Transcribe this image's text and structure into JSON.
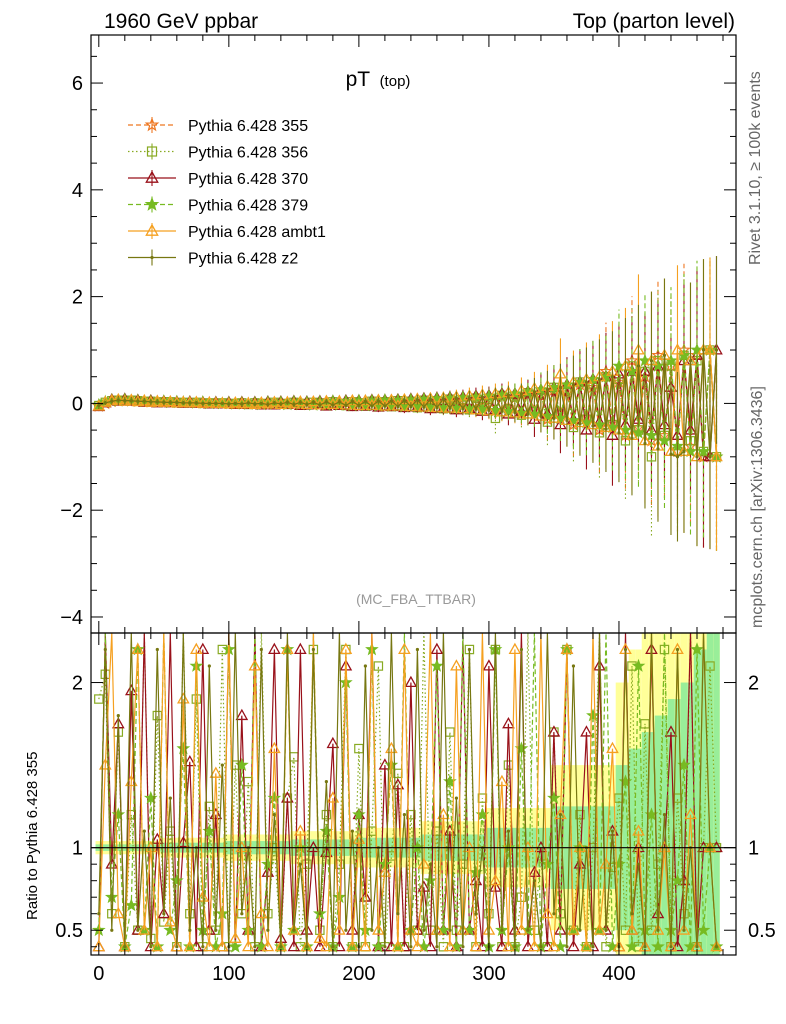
{
  "header": {
    "left": "1960 GeV ppbar",
    "right": "Top (parton level)"
  },
  "side": {
    "rivet": "Rivet 3.1.10, ≥ 100k events",
    "mcplots": "mcplots.cern.ch [arXiv:1306.3436]"
  },
  "chart_data": {
    "type": "line",
    "title_main": "pT",
    "title_sub": "(top)",
    "analysis_label": "(MC_FBA_TTBAR)",
    "x_ticks": [
      "0",
      "100",
      "200",
      "300",
      "400"
    ],
    "x_tick_values": [
      0,
      100,
      200,
      300,
      400
    ],
    "xlim": [
      -6,
      490
    ],
    "upper": {
      "ylim": [
        -4.3,
        6.9
      ],
      "y_ticks": [
        "−4",
        "−2",
        "0",
        "2",
        "4",
        "6"
      ],
      "y_tick_values": [
        -4,
        -2,
        0,
        2,
        4,
        6
      ],
      "grid": false
    },
    "ratio": {
      "ylabel": "Ratio to Pythia 6.428 355",
      "ylim": [
        0.35,
        2.3
      ],
      "y_ticks": [
        "0.5",
        "1",
        "2"
      ],
      "y_tick_values": [
        0.5,
        1,
        2
      ],
      "reference": 1
    },
    "legend_position": "top-left",
    "series": [
      {
        "name": "Pythia 6.428 355",
        "color": "#ee7722",
        "dash": "5,3",
        "marker": "star-open"
      },
      {
        "name": "Pythia 6.428 356",
        "color": "#88aa22",
        "dash": "1.5,2.5",
        "marker": "square-open"
      },
      {
        "name": "Pythia 6.428 370",
        "color": "#99111a",
        "dash": "",
        "marker": "triangle-open"
      },
      {
        "name": "Pythia 6.428 379",
        "color": "#77bb22",
        "dash": "5,3",
        "marker": "star-filled"
      },
      {
        "name": "Pythia 6.428 ambt1",
        "color": "#f5a020",
        "dash": "",
        "marker": "triangle-open"
      },
      {
        "name": "Pythia 6.428 z2",
        "color": "#777711",
        "dash": "",
        "marker": "dot"
      }
    ],
    "x": [
      0,
      5,
      10,
      15,
      20,
      25,
      30,
      35,
      40,
      45,
      50,
      55,
      60,
      65,
      70,
      75,
      80,
      85,
      90,
      95,
      100,
      105,
      110,
      115,
      120,
      125,
      130,
      135,
      140,
      145,
      150,
      155,
      160,
      165,
      170,
      175,
      180,
      185,
      190,
      195,
      200,
      205,
      210,
      215,
      220,
      225,
      230,
      235,
      240,
      245,
      250,
      255,
      260,
      265,
      270,
      275,
      280,
      285,
      290,
      295,
      300,
      305,
      310,
      315,
      320,
      325,
      330,
      335,
      340,
      345,
      350,
      355,
      360,
      365,
      370,
      375,
      380,
      385,
      390,
      395,
      400,
      405,
      410,
      415,
      420,
      425,
      430,
      435,
      440,
      445,
      450,
      455,
      460,
      465,
      470,
      475
    ],
    "values": [
      [
        -0.05,
        0.0,
        0.04,
        0.05,
        0.06,
        0.05,
        0.04,
        0.04,
        0.03,
        0.03,
        0.03,
        0.02,
        0.02,
        0.02,
        0.02,
        0.01,
        0.01,
        0.01,
        0.01,
        0.0,
        0.0,
        0.0,
        0.0,
        -0.01,
        0.0,
        -0.01,
        0.0,
        0.01,
        -0.01,
        0.0,
        0.01,
        -0.02,
        0.01,
        0.0,
        -0.02,
        0.02,
        -0.02,
        0.02,
        0.01,
        -0.02,
        0.02,
        -0.03,
        0.03,
        -0.01,
        0.02,
        -0.04,
        0.04,
        -0.02,
        0.03,
        -0.06,
        0.05,
        -0.03,
        0.04,
        -0.08,
        0.07,
        -0.04,
        0.05,
        -0.1,
        0.08,
        -0.05,
        0.06,
        -0.14,
        0.12,
        -0.08,
        0.1,
        -0.2,
        0.18,
        -0.12,
        0.14,
        -0.3,
        0.25,
        -0.18,
        0.2,
        -0.4,
        0.35,
        -0.25,
        0.3,
        -0.5,
        0.6,
        -0.35,
        0.4,
        -0.6,
        0.8,
        -0.45,
        0.5,
        -0.7,
        0.9,
        -0.6,
        0.7,
        -0.9,
        1.0,
        -0.8,
        0.9,
        -1.0,
        1.0,
        -1.0
      ],
      [
        -0.04,
        0.02,
        0.05,
        0.06,
        0.05,
        0.06,
        0.05,
        0.03,
        0.04,
        0.02,
        0.03,
        0.03,
        0.01,
        0.02,
        0.01,
        0.02,
        0.0,
        0.01,
        0.0,
        0.01,
        -0.01,
        0.0,
        0.01,
        -0.02,
        0.01,
        0.0,
        -0.01,
        0.02,
        0.0,
        -0.02,
        0.02,
        0.0,
        -0.03,
        0.02,
        0.01,
        -0.03,
        0.03,
        0.0,
        -0.04,
        0.03,
        0.01,
        -0.05,
        0.04,
        -0.02,
        0.03,
        -0.06,
        0.05,
        -0.03,
        0.04,
        -0.08,
        0.06,
        -0.04,
        0.05,
        -0.1,
        0.08,
        -0.05,
        0.07,
        -0.12,
        0.1,
        -0.06,
        0.08,
        -0.28,
        0.15,
        -0.1,
        0.12,
        -0.22,
        0.2,
        -0.15,
        0.18,
        -0.35,
        0.3,
        -0.2,
        0.25,
        -0.45,
        0.4,
        -0.3,
        0.35,
        -0.55,
        0.5,
        -0.4,
        0.45,
        -0.7,
        0.7,
        -0.5,
        0.6,
        -1.0,
        0.8,
        -0.6,
        0.7,
        -0.9,
        0.9,
        -0.7,
        0.8,
        -0.9,
        1.0,
        -1.0
      ],
      [
        -0.06,
        0.01,
        0.07,
        0.04,
        0.08,
        0.04,
        0.06,
        0.02,
        0.05,
        0.01,
        0.04,
        0.01,
        0.03,
        0.0,
        0.03,
        0.0,
        0.02,
        -0.01,
        0.02,
        -0.01,
        0.02,
        -0.02,
        0.02,
        -0.02,
        0.02,
        -0.03,
        0.03,
        -0.03,
        0.03,
        -0.02,
        0.04,
        -0.04,
        0.03,
        -0.03,
        0.04,
        -0.05,
        0.04,
        -0.04,
        0.05,
        -0.06,
        0.05,
        -0.05,
        0.06,
        -0.07,
        0.06,
        -0.06,
        0.07,
        -0.08,
        0.08,
        -0.07,
        0.09,
        -0.1,
        0.1,
        -0.09,
        0.11,
        -0.12,
        0.12,
        -0.1,
        0.14,
        -0.15,
        0.15,
        -0.12,
        0.18,
        -0.2,
        0.18,
        -0.15,
        0.22,
        -0.3,
        0.25,
        -0.2,
        0.3,
        -0.4,
        0.35,
        -0.3,
        0.4,
        -0.5,
        0.45,
        -0.35,
        0.5,
        -0.6,
        0.55,
        -0.4,
        0.6,
        -0.3,
        0.6,
        -0.5,
        0.7,
        -0.4,
        0.3,
        -0.6,
        0.8,
        -0.5,
        0.9,
        -1.0,
        -1.0,
        1.0
      ],
      [
        -0.03,
        0.03,
        0.06,
        0.05,
        0.07,
        0.05,
        0.05,
        0.04,
        0.04,
        0.03,
        0.04,
        0.02,
        0.03,
        0.02,
        0.02,
        0.01,
        0.02,
        0.0,
        0.01,
        0.0,
        0.01,
        -0.01,
        0.01,
        -0.01,
        0.01,
        -0.02,
        0.02,
        -0.01,
        0.02,
        -0.02,
        0.03,
        -0.02,
        0.02,
        -0.03,
        0.03,
        -0.03,
        0.04,
        -0.03,
        0.04,
        -0.04,
        0.05,
        -0.04,
        0.05,
        -0.05,
        0.06,
        -0.05,
        0.06,
        -0.06,
        0.07,
        -0.06,
        0.08,
        -0.07,
        0.09,
        -0.08,
        0.1,
        -0.09,
        0.11,
        -0.1,
        0.12,
        -0.11,
        0.14,
        -0.13,
        0.16,
        -0.15,
        0.18,
        -0.18,
        0.22,
        -0.2,
        0.26,
        -0.24,
        0.3,
        -0.28,
        0.35,
        -0.32,
        0.4,
        -0.36,
        0.45,
        -0.4,
        0.5,
        -0.45,
        0.7,
        -0.5,
        0.6,
        -0.55,
        0.8,
        -0.6,
        0.7,
        -0.7,
        0.8,
        -0.8,
        0.9,
        -0.9,
        1.0,
        -0.9,
        1.0,
        -1.0
      ],
      [
        -0.05,
        0.02,
        0.05,
        0.07,
        0.04,
        0.06,
        0.03,
        0.05,
        0.02,
        0.04,
        0.02,
        0.03,
        0.01,
        0.02,
        0.01,
        0.02,
        0.0,
        0.01,
        0.0,
        0.0,
        -0.01,
        0.01,
        -0.01,
        0.0,
        -0.02,
        0.01,
        -0.01,
        0.02,
        -0.02,
        0.02,
        -0.01,
        0.03,
        -0.02,
        0.03,
        -0.03,
        0.04,
        -0.02,
        0.04,
        -0.03,
        0.05,
        -0.04,
        0.05,
        -0.04,
        0.06,
        -0.05,
        0.06,
        -0.05,
        0.07,
        -0.06,
        0.08,
        -0.07,
        0.09,
        -0.08,
        0.1,
        -0.09,
        0.12,
        -0.1,
        0.14,
        -0.12,
        0.16,
        -0.14,
        0.18,
        -0.16,
        0.2,
        -0.18,
        0.24,
        -0.2,
        0.28,
        -0.24,
        0.32,
        -0.28,
        0.55,
        -0.32,
        0.4,
        -0.36,
        0.45,
        -0.4,
        0.5,
        -0.45,
        0.6,
        -0.5,
        0.7,
        -0.6,
        1.0,
        -0.7,
        0.8,
        -0.8,
        0.9,
        -0.9,
        1.0,
        -0.9,
        0.8,
        -1.0,
        1.0,
        1.0,
        -1.0
      ],
      [
        -0.04,
        0.01,
        0.04,
        0.06,
        0.05,
        0.05,
        0.04,
        0.04,
        0.03,
        0.03,
        0.02,
        0.02,
        0.02,
        0.01,
        0.01,
        0.01,
        0.0,
        0.0,
        0.0,
        0.0,
        -0.01,
        0.0,
        -0.01,
        0.01,
        -0.01,
        0.0,
        -0.02,
        0.01,
        -0.01,
        0.02,
        -0.02,
        0.02,
        -0.02,
        0.02,
        -0.03,
        0.03,
        -0.03,
        0.03,
        -0.04,
        0.04,
        -0.04,
        0.04,
        -0.05,
        0.05,
        -0.05,
        0.05,
        -0.06,
        0.06,
        -0.06,
        0.07,
        -0.07,
        0.08,
        -0.08,
        0.09,
        -0.09,
        0.1,
        -0.1,
        0.11,
        -0.11,
        0.12,
        -0.13,
        0.14,
        -0.15,
        0.16,
        -0.17,
        0.18,
        -0.2,
        0.22,
        -0.24,
        0.26,
        -0.28,
        0.3,
        -0.32,
        0.35,
        -0.38,
        0.4,
        -0.42,
        0.45,
        -0.48,
        0.5,
        -0.55,
        0.6,
        -0.65,
        0.7,
        -0.75,
        0.8,
        -0.85,
        0.9,
        -0.95,
        -1.0,
        -0.9,
        0.8,
        -1.0,
        1.0,
        -1.0,
        1.0
      ]
    ],
    "band_error": [
      0.02,
      0.02,
      0.02,
      0.02,
      0.02,
      0.02,
      0.02,
      0.02,
      0.02,
      0.02,
      0.03,
      0.03,
      0.03,
      0.03,
      0.03,
      0.03,
      0.03,
      0.03,
      0.03,
      0.03,
      0.04,
      0.04,
      0.04,
      0.04,
      0.04,
      0.04,
      0.04,
      0.04,
      0.04,
      0.04,
      0.05,
      0.05,
      0.05,
      0.05,
      0.05,
      0.05,
      0.05,
      0.05,
      0.05,
      0.05,
      0.06,
      0.06,
      0.06,
      0.06,
      0.06,
      0.06,
      0.06,
      0.06,
      0.06,
      0.06,
      0.08,
      0.08,
      0.08,
      0.08,
      0.08,
      0.08,
      0.08,
      0.08,
      0.08,
      0.08,
      0.12,
      0.12,
      0.12,
      0.12,
      0.12,
      0.12,
      0.12,
      0.12,
      0.12,
      0.12,
      0.25,
      0.25,
      0.25,
      0.25,
      0.25,
      0.25,
      0.25,
      0.25,
      0.25,
      0.25,
      0.5,
      0.5,
      0.6,
      0.6,
      0.7,
      0.7,
      0.8,
      0.8,
      0.9,
      0.9,
      1.0,
      1.0,
      1.2,
      1.2,
      1.4,
      1.4
    ],
    "ratio_values": [
      [
        1,
        1,
        1,
        1,
        1,
        1,
        1,
        1,
        1,
        1,
        1,
        1,
        1,
        1,
        1,
        1,
        1,
        1,
        1,
        1,
        1,
        1,
        1,
        1,
        1,
        1,
        1,
        1,
        1,
        1,
        1,
        1,
        1,
        1,
        1,
        1,
        1,
        1,
        1,
        1,
        1,
        1,
        1,
        1,
        1,
        1,
        1,
        1,
        1,
        1,
        1,
        1,
        1,
        1,
        1,
        1,
        1,
        1,
        1,
        1,
        1,
        1,
        1,
        1,
        1,
        1,
        1,
        1,
        1,
        1,
        1,
        1,
        1,
        1,
        1,
        1,
        1,
        1,
        1,
        1,
        1,
        1,
        1,
        1,
        1,
        1,
        1,
        1,
        1,
        1,
        1,
        1,
        1,
        1,
        1,
        1
      ],
      [
        1.9,
        2.05,
        0.6,
        1.7,
        0.4,
        1.2,
        0.5,
        2.3,
        0.45,
        1.8,
        0.55,
        1.1,
        0.4,
        2.3,
        0.6,
        1.9,
        0.4,
        1.25,
        0.5,
        2.2,
        0.4,
        1.5,
        0.6,
        1.4,
        0.4,
        2.3,
        0.6,
        1.0,
        0.4,
        1.3,
        1.55,
        0.4,
        0.9,
        2.2,
        0.5,
        1.2,
        0.4,
        0.9,
        2.2,
        0.4,
        1.6,
        0.4,
        1.1,
        2.1,
        0.4,
        0.95,
        1.45,
        0.4,
        1.2,
        0.5,
        2.3,
        0.5,
        1.1,
        0.4,
        1.7,
        0.5,
        0.9,
        2.2,
        0.4,
        1.3,
        0.6,
        2.2,
        0.4,
        1.5,
        0.4,
        0.7,
        2.3,
        0.5,
        0.95,
        0.4,
        1.7,
        0.6,
        2.2,
        0.5,
        1.2,
        0.4,
        1.0,
        2.3,
        0.4,
        0.88,
        1.3,
        0.5,
        2.1,
        0.4,
        1.75,
        0.5,
        0.9,
        2.2,
        0.4,
        1.3,
        0.6,
        2.3,
        0.4,
        1.0,
        2.1,
        1.0
      ],
      [
        0.4,
        2.3,
        0.9,
        1.75,
        0.4,
        1.95,
        0.5,
        2.3,
        0.4,
        1.05,
        0.6,
        2.3,
        0.4,
        1.03,
        1.52,
        0.4,
        2.2,
        0.5,
        1.2,
        0.4,
        2.3,
        0.38,
        1.8,
        0.5,
        2.3,
        0.4,
        0.85,
        2.2,
        0.45,
        1.3,
        0.4,
        2.2,
        0.5,
        1.0,
        0.4,
        0.97,
        1.63,
        0.4,
        2.1,
        0.5,
        1.2,
        0.7,
        2.3,
        0.4,
        1.5,
        0.4,
        1.38,
        0.4,
        2.0,
        0.5,
        0.76,
        0.4,
        2.2,
        0.5,
        1.1,
        0.4,
        2.25,
        0.5,
        0.8,
        0.4,
        2.1,
        0.76,
        0.4,
        1.75,
        0.5,
        2.3,
        0.4,
        0.85,
        1.0,
        0.4,
        1.7,
        0.5,
        2.2,
        0.4,
        0.9,
        1.7,
        0.4,
        2.1,
        0.5,
        1.1,
        0.4,
        2.3,
        0.5,
        1.0,
        0.4,
        2.2,
        0.6,
        1.0,
        1.7,
        0.4,
        0.8,
        2.3,
        0.4,
        1.0,
        1.0,
        1.0
      ],
      [
        0.5,
        2.3,
        0.7,
        1.2,
        0.4,
        0.65,
        2.2,
        0.5,
        1.3,
        0.4,
        2.3,
        0.5,
        0.8,
        1.6,
        0.4,
        2.1,
        0.5,
        1.1,
        0.4,
        0.6,
        2.2,
        0.4,
        1.5,
        0.5,
        2.3,
        0.4,
        0.9,
        1.3,
        0.4,
        2.2,
        0.5,
        1.0,
        0.4,
        2.3,
        0.6,
        1.1,
        0.4,
        0.7,
        2.0,
        0.4,
        1.2,
        0.5,
        2.2,
        0.4,
        0.9,
        1.5,
        0.4,
        2.3,
        0.5,
        1.0,
        0.4,
        0.8,
        2.1,
        0.5,
        1.4,
        0.4,
        2.3,
        0.5,
        0.85,
        1.2,
        0.4,
        2.2,
        0.5,
        1.0,
        0.4,
        1.6,
        0.5,
        2.3,
        0.4,
        0.9,
        1.3,
        0.4,
        2.2,
        0.5,
        1.0,
        0.4,
        1.8,
        0.5,
        2.3,
        0.4,
        0.9,
        1.4,
        0.4,
        2.1,
        0.5,
        1.2,
        0.4,
        2.3,
        0.5,
        0.8,
        1.5,
        0.4,
        2.2,
        0.5,
        1.0,
        0.4
      ],
      [
        0.4,
        1.5,
        2.3,
        0.6,
        0.4,
        1.4,
        2.2,
        0.5,
        1.0,
        0.4,
        2.3,
        0.55,
        0.4,
        1.9,
        0.4,
        2.2,
        0.7,
        0.4,
        1.45,
        0.4,
        2.3,
        0.45,
        1.0,
        0.4,
        2.1,
        0.6,
        0.4,
        1.6,
        0.4,
        2.2,
        0.5,
        1.1,
        0.4,
        2.3,
        0.45,
        0.4,
        1.3,
        0.5,
        2.2,
        0.4,
        1.05,
        0.4,
        2.3,
        0.5,
        0.85,
        1.6,
        0.4,
        2.2,
        0.5,
        0.4,
        0.9,
        2.3,
        0.5,
        1.2,
        0.4,
        2.1,
        0.5,
        1.0,
        0.4,
        2.3,
        0.5,
        0.8,
        1.4,
        0.4,
        2.2,
        0.5,
        1.0,
        0.4,
        2.3,
        0.6,
        0.4,
        1.2,
        2.2,
        0.5,
        1.0,
        0.4,
        2.3,
        0.5,
        0.9,
        1.6,
        0.4,
        2.2,
        0.5,
        1.1,
        0.4,
        2.3,
        0.5,
        1.0,
        0.4,
        2.2,
        0.5,
        1.2,
        0.4,
        2.3,
        1.0,
        0.4
      ],
      [
        0.6,
        2.2,
        0.5,
        1.8,
        0.4,
        2.3,
        0.5,
        1.1,
        0.4,
        2.2,
        0.6,
        1.3,
        0.4,
        2.3,
        0.5,
        1.0,
        0.4,
        2.1,
        0.5,
        1.5,
        0.4,
        2.3,
        0.6,
        1.0,
        0.4,
        2.2,
        0.5,
        1.2,
        0.4,
        2.3,
        0.5,
        0.9,
        0.4,
        2.2,
        0.6,
        1.4,
        0.4,
        2.3,
        0.5,
        1.1,
        0.4,
        2.1,
        0.5,
        1.0,
        0.4,
        2.3,
        0.6,
        1.2,
        0.4,
        2.2,
        0.5,
        0.9,
        0.4,
        2.3,
        0.5,
        1.3,
        0.4,
        2.2,
        0.6,
        1.0,
        0.4,
        2.3,
        0.5,
        1.1,
        0.4,
        2.2,
        0.5,
        0.8,
        0.4,
        2.3,
        0.6,
        1.2,
        0.4,
        2.1,
        0.5,
        1.0,
        0.4,
        2.3,
        0.5,
        1.1,
        0.4,
        2.2,
        0.6,
        0.9,
        0.4,
        2.3,
        0.5,
        1.2,
        0.4,
        2.2,
        0.5,
        1.0,
        0.4,
        2.3,
        1.0,
        0.4
      ]
    ]
  }
}
